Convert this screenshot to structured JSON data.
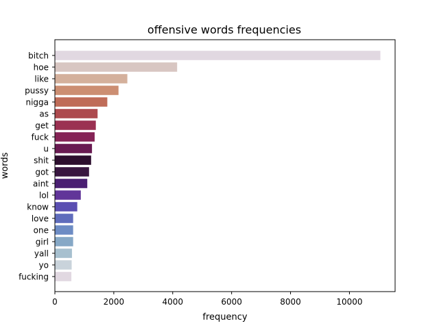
{
  "chart_data": {
    "type": "bar",
    "orientation": "horizontal",
    "title": "offensive words frequencies",
    "xlabel": "frequency",
    "ylabel": "words",
    "xlim": [
      0,
      11550
    ],
    "xticks": [
      0,
      2000,
      4000,
      6000,
      8000,
      10000
    ],
    "grid": false,
    "legend": "none",
    "categories": [
      "bitch",
      "hoe",
      "like",
      "pussy",
      "nigga",
      "as",
      "get",
      "fuck",
      "u",
      "shit",
      "got",
      "aint",
      "lol",
      "know",
      "love",
      "one",
      "girl",
      "yall",
      "yo",
      "fucking"
    ],
    "values": [
      11050,
      4150,
      2460,
      2160,
      1780,
      1450,
      1390,
      1350,
      1260,
      1230,
      1160,
      1100,
      880,
      760,
      620,
      620,
      620,
      580,
      570,
      560
    ],
    "colors": [
      "#e1d8e1",
      "#d8c6c2",
      "#d4b09c",
      "#cc8e72",
      "#bf6c58",
      "#ad4a4e",
      "#9b3152",
      "#852356",
      "#691a52",
      "#2d0e2e",
      "#391640",
      "#4a1f72",
      "#613599",
      "#5b4fb2",
      "#5f6cbc",
      "#6d8cc4",
      "#86a8c6",
      "#a7c0cf",
      "#c9d3db",
      "#e1d8e1"
    ]
  }
}
